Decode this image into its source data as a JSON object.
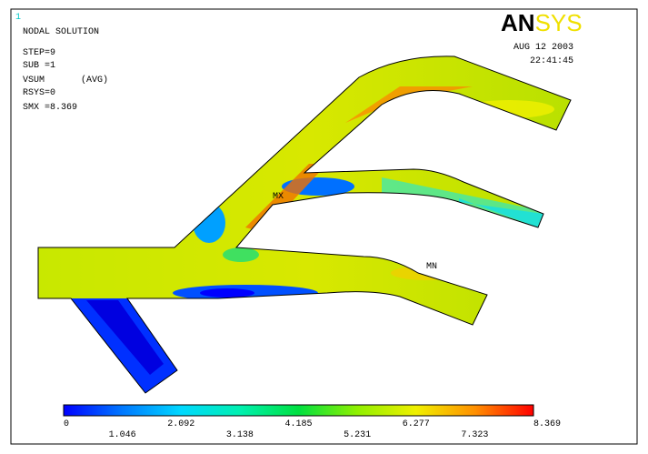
{
  "window_number": "1",
  "header": {
    "title": "NODAL SOLUTION",
    "step": "STEP=9",
    "sub": "SUB =1",
    "quantity": "VSUM",
    "averaging": "(AVG)",
    "rsys": "RSYS=0",
    "smx": "SMX =8.369"
  },
  "logo": "ANSYS",
  "date": "AUG 12 2003",
  "time": "22:41:45",
  "markers": {
    "max": "MX",
    "min": "MN"
  },
  "legend": {
    "labels": [
      "0",
      "1.046",
      "2.092",
      "3.138",
      "4.185",
      "5.231",
      "6.277",
      "7.323",
      "8.369"
    ]
  }
}
